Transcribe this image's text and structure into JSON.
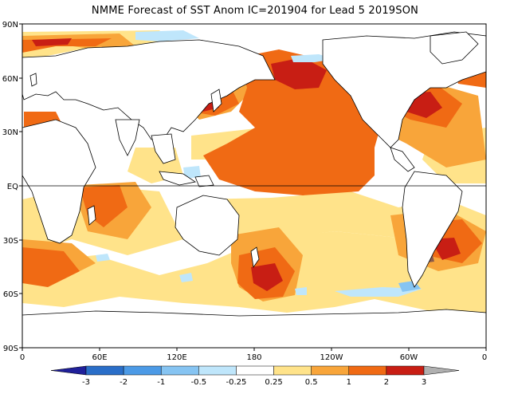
{
  "title": "NMME Forecast of SST Anom IC=201904 for Lead 5 2019SON",
  "map": {
    "lat_labels": [
      "90N",
      "60N",
      "30N",
      "EQ",
      "30S",
      "60S",
      "90S"
    ],
    "lon_labels": [
      "0",
      "60E",
      "120E",
      "180",
      "120W",
      "60W",
      "0"
    ],
    "land_color": "#ffffff",
    "coast_color": "#000000",
    "equator_line": true
  },
  "colorbar": {
    "levels": [
      "-3",
      "-2",
      "-1",
      "-0.5",
      "-0.25",
      "0.25",
      "0.5",
      "1",
      "2",
      "3"
    ],
    "colors": [
      "#20209a",
      "#2a6ec8",
      "#4c9ae6",
      "#86c4f2",
      "#bfe6fb",
      "#ffffff",
      "#ffe38a",
      "#f8a53a",
      "#f06a14",
      "#c81e14",
      "#8c5a48",
      "#b0b0b0"
    ]
  },
  "anomaly_palette": {
    "weak_warm": "#ffe38a",
    "moderate_warm": "#f8a53a",
    "strong_warm": "#f06a14",
    "very_strong_warm": "#c81e14",
    "extreme_warm": "#8c5a48",
    "weak_cool": "#bfe6fb",
    "moderate_cool": "#86c4f2"
  }
}
